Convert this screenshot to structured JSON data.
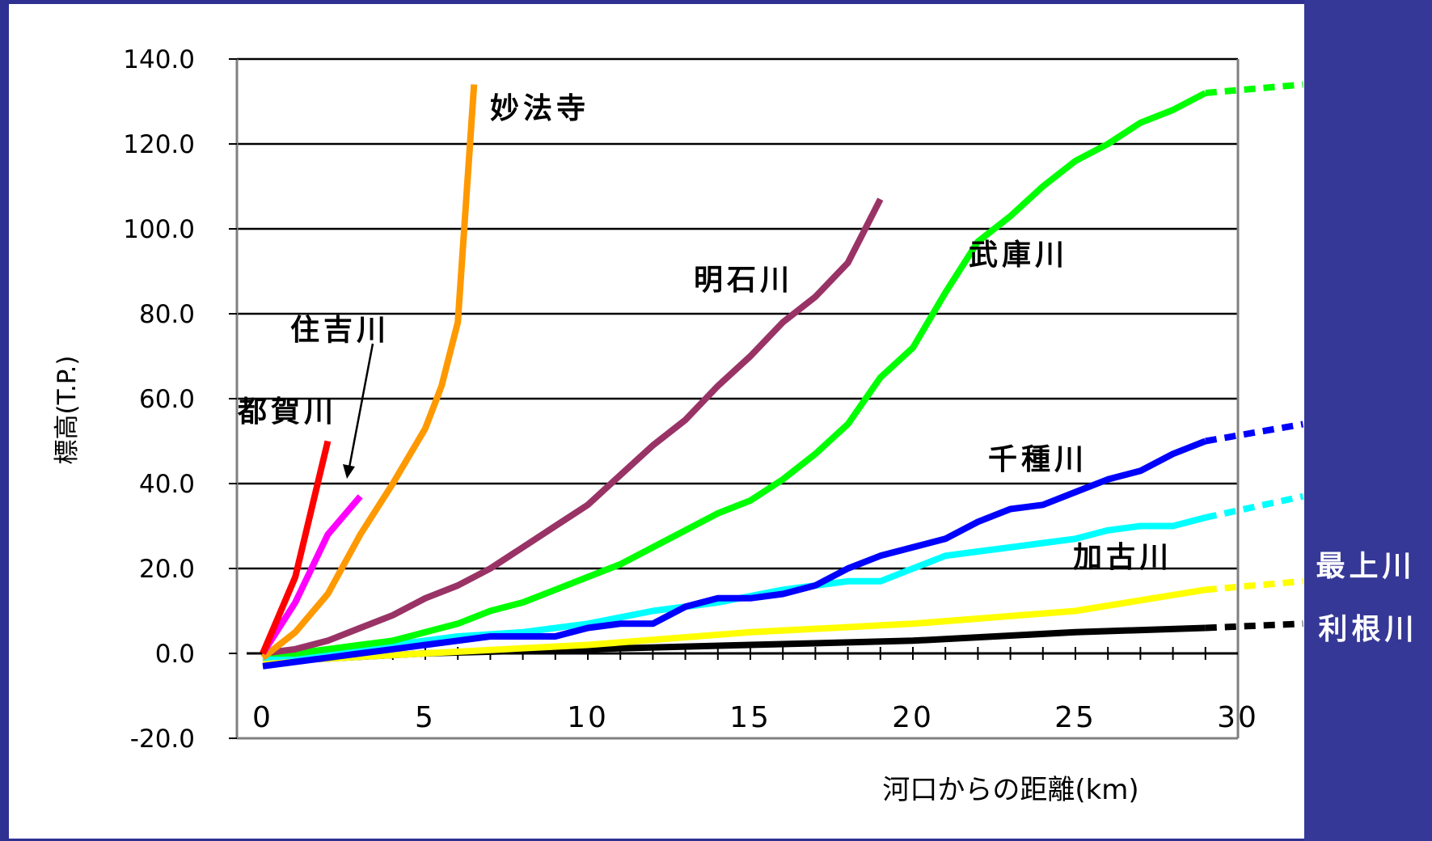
{
  "chart_data": {
    "type": "line",
    "title": "",
    "xlabel": "河口からの距離(km)",
    "ylabel": "標高(T.P.)",
    "xlim": [
      0,
      30
    ],
    "ylim": [
      -20,
      140
    ],
    "x_ticks": [
      "0",
      "5",
      "10",
      "15",
      "20",
      "25",
      "30"
    ],
    "y_ticks": [
      "140.0",
      "120.0",
      "100.0",
      "80.0",
      "60.0",
      "40.0",
      "20.0",
      "0.0",
      "-20.0"
    ],
    "grid": true,
    "arrow_label": "住吉川",
    "series": [
      {
        "name": "都賀川",
        "color": "#ff0000",
        "x": [
          0,
          1,
          2
        ],
        "y": [
          0,
          18,
          50
        ]
      },
      {
        "name": "住吉川",
        "color": "#ff00ff",
        "x": [
          0,
          1,
          2,
          3
        ],
        "y": [
          0,
          12,
          28,
          37
        ]
      },
      {
        "name": "妙法寺",
        "color": "#ff9900",
        "x": [
          0,
          1,
          2,
          3,
          4,
          5,
          5.5,
          6,
          6.5
        ],
        "y": [
          -1,
          5,
          14,
          28,
          40,
          53,
          63,
          78,
          134
        ]
      },
      {
        "name": "明石川",
        "color": "#993366",
        "x": [
          0,
          1,
          2,
          3,
          4,
          5,
          6,
          7,
          8,
          9,
          10,
          11,
          12,
          13,
          14,
          15,
          16,
          17,
          18,
          19
        ],
        "y": [
          0,
          1,
          3,
          6,
          9,
          13,
          16,
          20,
          25,
          30,
          35,
          42,
          49,
          55,
          63,
          70,
          78,
          84,
          92,
          107
        ]
      },
      {
        "name": "武庫川",
        "color": "#00ff00",
        "x": [
          0,
          1,
          2,
          3,
          4,
          5,
          6,
          7,
          8,
          9,
          10,
          11,
          12,
          13,
          14,
          15,
          16,
          17,
          18,
          19,
          20,
          21,
          22,
          23,
          24,
          25,
          26,
          27,
          28,
          29
        ],
        "y": [
          0,
          0,
          1,
          2,
          3,
          5,
          7,
          10,
          12,
          15,
          18,
          21,
          25,
          29,
          33,
          36,
          41,
          47,
          54,
          65,
          72,
          85,
          97,
          103,
          110,
          116,
          120,
          125,
          128,
          132
        ],
        "extension": {
          "x": [
            29,
            32
          ],
          "y": [
            132,
            134
          ]
        }
      },
      {
        "name": "千種川",
        "color": "#0000ff",
        "x": [
          0,
          1,
          2,
          3,
          4,
          5,
          6,
          7,
          8,
          9,
          10,
          11,
          12,
          13,
          14,
          15,
          16,
          17,
          18,
          19,
          20,
          21,
          22,
          23,
          24,
          25,
          26,
          27,
          28,
          29
        ],
        "y": [
          -3,
          -2,
          -1,
          0,
          1,
          2,
          3,
          4,
          4,
          4,
          6,
          7,
          7,
          11,
          13,
          13,
          14,
          16,
          20,
          23,
          25,
          27,
          31,
          34,
          35,
          38,
          41,
          43,
          47,
          50
        ],
        "extension": {
          "x": [
            29,
            32
          ],
          "y": [
            50,
            54
          ]
        }
      },
      {
        "name": "加古川",
        "color": "#00ffff",
        "x": [
          0,
          2,
          4,
          6,
          8,
          10,
          12,
          14,
          16,
          18,
          19,
          20,
          21,
          22,
          23,
          24,
          25,
          26,
          27,
          28,
          29
        ],
        "y": [
          -1,
          0,
          2,
          4,
          5,
          7,
          10,
          12,
          15,
          17,
          17,
          20,
          23,
          24,
          25,
          26,
          27,
          29,
          30,
          30,
          32
        ],
        "extension": {
          "x": [
            29,
            32
          ],
          "y": [
            32,
            37
          ]
        }
      },
      {
        "name": "最上川",
        "color": "#ffff00",
        "x": [
          0,
          5,
          10,
          15,
          20,
          25,
          29
        ],
        "y": [
          -2,
          0,
          2,
          5,
          7,
          10,
          15
        ],
        "extension": {
          "x": [
            29,
            32
          ],
          "y": [
            15,
            17
          ]
        }
      },
      {
        "name": "利根川",
        "color": "#000000",
        "x": [
          0,
          5,
          10,
          15,
          20,
          25,
          29
        ],
        "y": [
          -2,
          0,
          1,
          2,
          3,
          5,
          6
        ],
        "extension": {
          "x": [
            29,
            32
          ],
          "y": [
            6,
            7
          ]
        }
      }
    ]
  }
}
